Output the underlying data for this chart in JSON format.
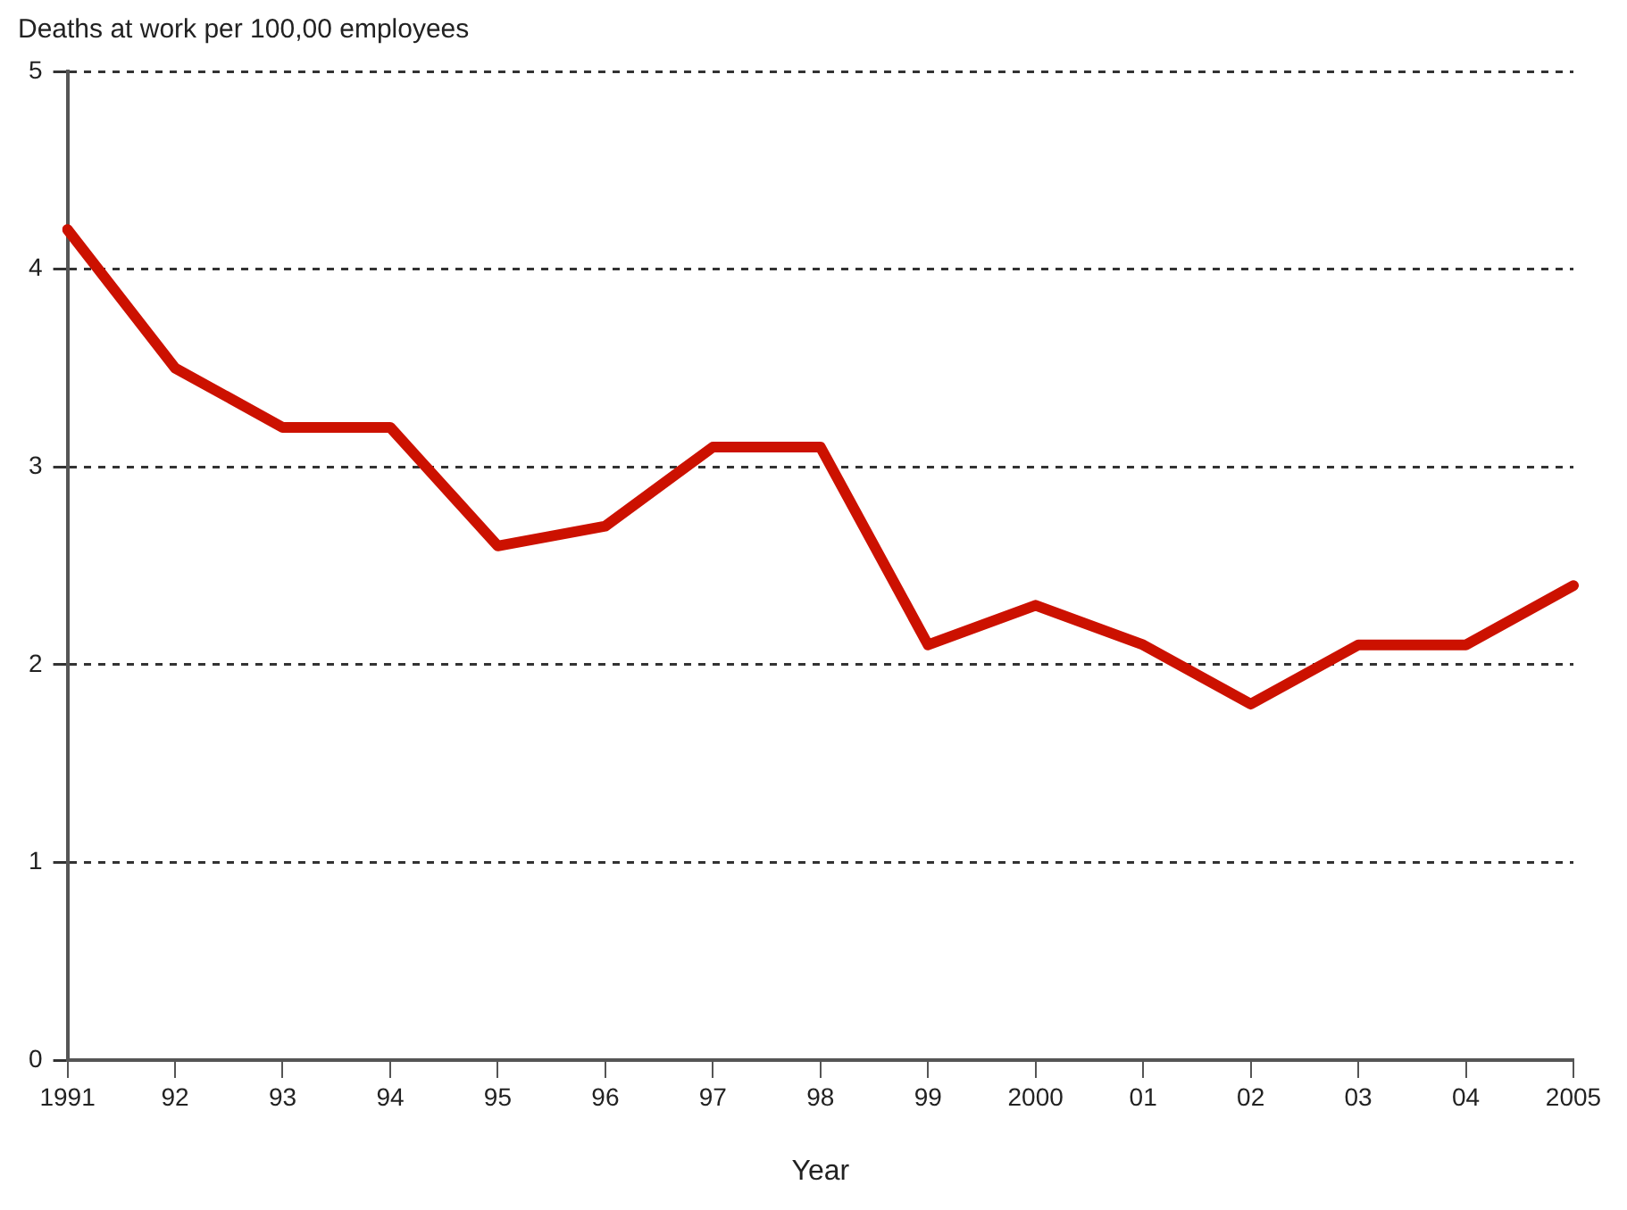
{
  "chart_data": {
    "type": "line",
    "title": "Deaths at work per 100,00 employees",
    "xlabel": "Year",
    "categories": [
      "1991",
      "92",
      "93",
      "94",
      "95",
      "96",
      "97",
      "98",
      "99",
      "2000",
      "01",
      "02",
      "03",
      "04",
      "2005"
    ],
    "series": [
      {
        "color": "#cc1100",
        "values": [
          4.2,
          3.5,
          3.2,
          3.2,
          2.6,
          2.7,
          3.1,
          3.1,
          2.1,
          2.3,
          2.1,
          1.8,
          2.1,
          2.1,
          2.4
        ]
      }
    ],
    "ylim": [
      0,
      5
    ],
    "yticks": [
      0,
      1,
      2,
      3,
      4,
      5
    ],
    "grid": "y",
    "legend": false,
    "marker": "none",
    "line_style": "solid"
  }
}
